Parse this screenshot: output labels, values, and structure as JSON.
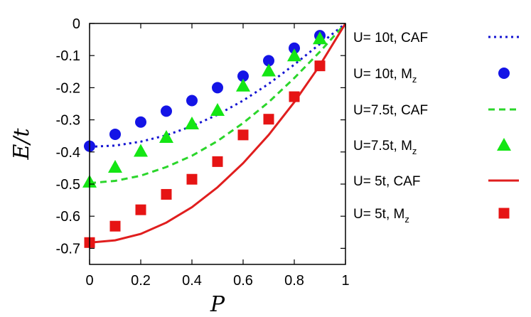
{
  "chart_data": {
    "type": "line",
    "xlabel": "P",
    "ylabel": "E/t",
    "xlim": [
      0,
      1
    ],
    "ylim": [
      -0.75,
      0
    ],
    "xticks": [
      "0",
      "0.2",
      "0.4",
      "0.6",
      "0.8",
      "1"
    ],
    "yticks": [
      "0",
      "-0.1",
      "-0.2",
      "-0.3",
      "-0.4",
      "-0.5",
      "-0.6",
      "-0.7"
    ],
    "legend_position": "right, outside plot",
    "series": [
      {
        "name": "U= 10t, CAF",
        "name_main": "U= 10t, CAF",
        "name_sub": "",
        "kind": "line",
        "style": "dotted",
        "color": "#1414d2",
        "x": [
          0,
          0.1,
          0.2,
          0.3,
          0.4,
          0.5,
          0.6,
          0.7,
          0.8,
          0.9,
          1.0
        ],
        "y": [
          -0.384,
          -0.38,
          -0.368,
          -0.348,
          -0.32,
          -0.284,
          -0.24,
          -0.188,
          -0.128,
          -0.064,
          0.0
        ]
      },
      {
        "name": "U= 10t,  Mz",
        "name_main": "U= 10t,  M",
        "name_sub": "z",
        "kind": "marker",
        "marker": "circle",
        "color": "#1414e6",
        "x": [
          0,
          0.1,
          0.2,
          0.3,
          0.4,
          0.5,
          0.6,
          0.7,
          0.8,
          0.9
        ],
        "y": [
          -0.382,
          -0.345,
          -0.307,
          -0.273,
          -0.24,
          -0.2,
          -0.164,
          -0.116,
          -0.077,
          -0.038
        ]
      },
      {
        "name": "U=7.5t, CAF",
        "name_main": "U=7.5t, CAF",
        "name_sub": "",
        "kind": "line",
        "style": "dashed",
        "color": "#2bd62b",
        "x": [
          0,
          0.1,
          0.2,
          0.3,
          0.4,
          0.5,
          0.6,
          0.7,
          0.8,
          0.9,
          1.0
        ],
        "y": [
          -0.497,
          -0.49,
          -0.474,
          -0.447,
          -0.412,
          -0.366,
          -0.31,
          -0.245,
          -0.17,
          -0.088,
          0.0
        ]
      },
      {
        "name": "U=7.5t,  Mz",
        "name_main": "U=7.5t,  M",
        "name_sub": "z",
        "kind": "marker",
        "marker": "triangle",
        "color": "#14e614",
        "x": [
          0,
          0.1,
          0.2,
          0.3,
          0.4,
          0.5,
          0.6,
          0.7,
          0.8,
          0.9
        ],
        "y": [
          -0.493,
          -0.447,
          -0.397,
          -0.354,
          -0.312,
          -0.27,
          -0.194,
          -0.147,
          -0.1,
          -0.047
        ]
      },
      {
        "name": "U=  5t, CAF",
        "name_main": "U=  5t, CAF",
        "name_sub": "",
        "kind": "line",
        "style": "solid",
        "color": "#e01e1e",
        "x": [
          0,
          0.1,
          0.2,
          0.3,
          0.4,
          0.5,
          0.6,
          0.7,
          0.8,
          0.9,
          1.0
        ],
        "y": [
          -0.682,
          -0.675,
          -0.655,
          -0.62,
          -0.572,
          -0.51,
          -0.435,
          -0.347,
          -0.245,
          -0.13,
          0.0
        ]
      },
      {
        "name": "U=  5t,  Mz",
        "name_main": "U=  5t,  M",
        "name_sub": "z",
        "kind": "marker",
        "marker": "square",
        "color": "#e61414",
        "x": [
          0,
          0.1,
          0.2,
          0.3,
          0.4,
          0.5,
          0.6,
          0.7,
          0.8,
          0.9
        ],
        "y": [
          -0.682,
          -0.631,
          -0.58,
          -0.532,
          -0.485,
          -0.43,
          -0.347,
          -0.298,
          -0.228,
          -0.132
        ]
      }
    ]
  }
}
